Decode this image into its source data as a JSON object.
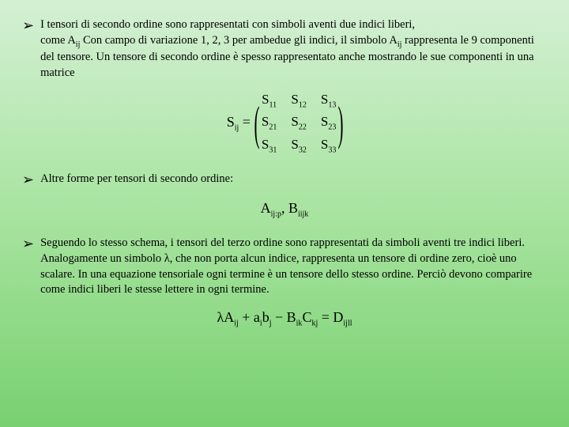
{
  "bullets": {
    "b1": {
      "arrow": "➢",
      "text_parts": {
        "p1": "I tensori di secondo ordine sono rappresentati con simboli aventi due indici liberi,",
        "p2": "come A",
        "p2sub": "ij",
        "p3": " Con campo di variazione 1, 2, 3 per ambedue gli indici, il simbolo  A",
        "p3sub": "ij",
        "p4": " rappresenta le 9 componenti del tensore. Un tensore di secondo ordine è spesso rappresentato anche mostrando le sue componenti in una matrice"
      }
    },
    "b2": {
      "arrow": "➢",
      "text": "Altre forme per tensori di secondo ordine:"
    },
    "b3": {
      "arrow": "➢",
      "text": "Seguendo lo stesso schema, i tensori del terzo ordine sono rappresentati da simboli aventi tre indici liberi. Analogamente un simbolo λ, che non porta alcun indice, rappresenta un tensore di ordine zero, cioè uno scalare. In una equazione tensoriale ogni termine è un tensore dello stesso ordine. Perciò devono comparire come indici liberi le stesse lettere in ogni termine."
    }
  },
  "matrix": {
    "label_base": "S",
    "label_sub": "ij",
    "eq": " = ",
    "cells": {
      "c11b": "S",
      "c11s": "11",
      "c12b": "S",
      "c12s": "12",
      "c13b": "S",
      "c13s": "13",
      "c21b": "S",
      "c21s": "21",
      "c22b": "S",
      "c22s": "22",
      "c23b": "S",
      "c23s": "23",
      "c31b": "S",
      "c31s": "31",
      "c32b": "S",
      "c32s": "32",
      "c33b": "S",
      "c33s": "33"
    }
  },
  "formula2": {
    "t1": "A",
    "s1": "ij:p",
    "sep": ", ",
    "t2": "B",
    "s2": "iijk"
  },
  "formula3": {
    "t1": "λA",
    "s1": "ij",
    "t2": " + a",
    "s2": "i",
    "t3": "b",
    "s3": "j",
    "t4": " − B",
    "s4": "ik",
    "t5": "C",
    "s5": "kj",
    "t6": " = D",
    "s6": "ijll"
  }
}
